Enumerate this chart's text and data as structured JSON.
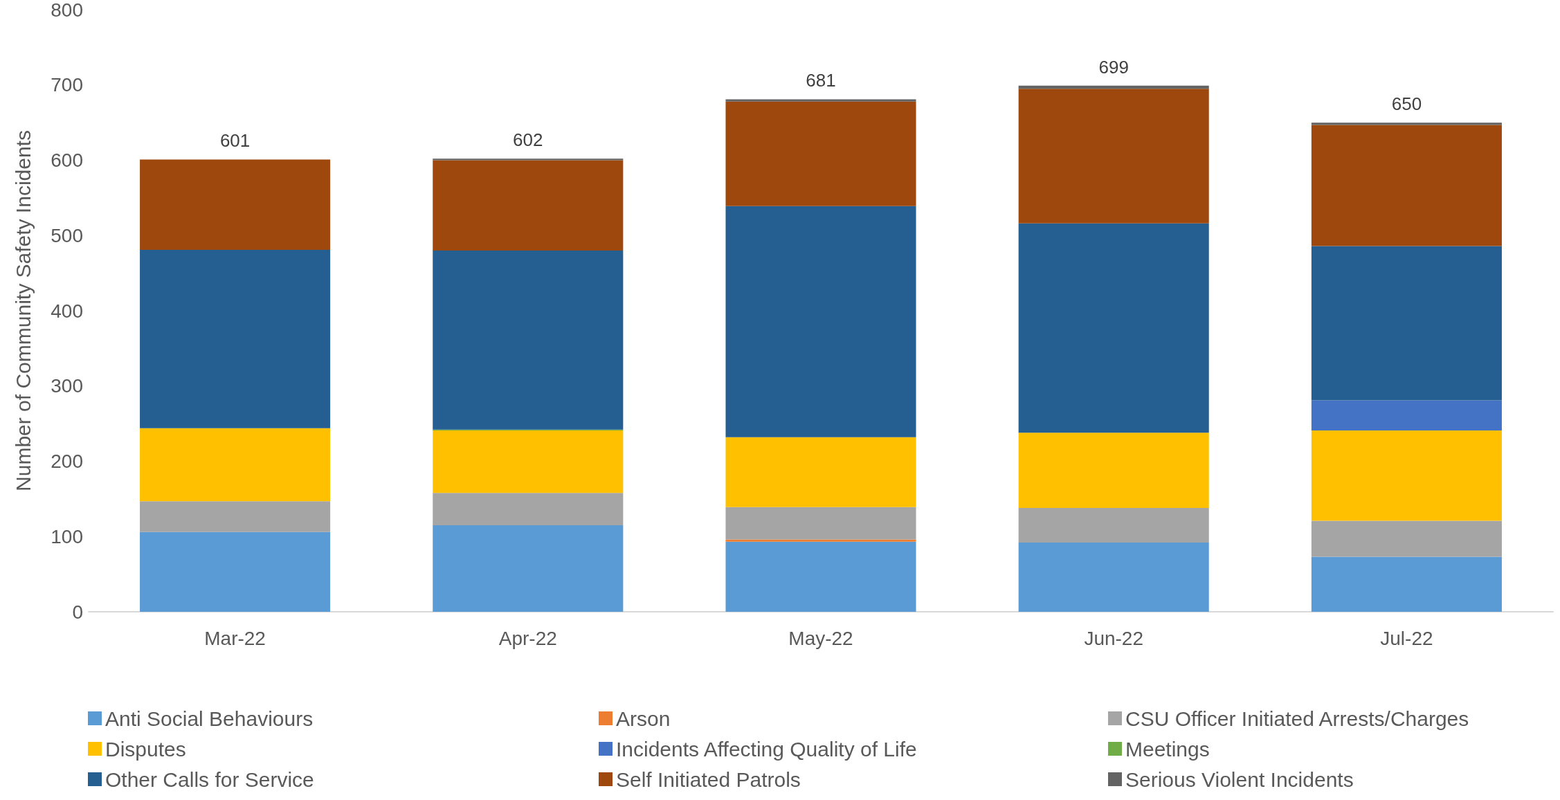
{
  "chart_data": {
    "type": "bar",
    "stacked": true,
    "ylabel": "Number of Community Safety Incidents",
    "categories": [
      "Mar-22",
      "Apr-22",
      "May-22",
      "Jun-22",
      "Jul-22"
    ],
    "ylim": [
      0,
      800
    ],
    "yticks": [
      0,
      100,
      200,
      300,
      400,
      500,
      600,
      700,
      800
    ],
    "grid": false,
    "legend": "bottom",
    "totals": [
      "601",
      "602",
      "681",
      "699",
      "650"
    ],
    "series": [
      {
        "name": "Anti Social Behaviours",
        "color": "#5b9bd5",
        "values": [
          106,
          115,
          93,
          92,
          73
        ]
      },
      {
        "name": "Arson",
        "color": "#ed7d31",
        "values": [
          0,
          0,
          3,
          0,
          0
        ]
      },
      {
        "name": "CSU Officer Initiated Arrests/Charges",
        "color": "#a5a5a5",
        "values": [
          41,
          43,
          43,
          46,
          48
        ]
      },
      {
        "name": "Disputes",
        "color": "#ffc000",
        "values": [
          97,
          83,
          93,
          100,
          120
        ]
      },
      {
        "name": "Incidents Affecting Quality of Life",
        "color": "#4472c4",
        "values": [
          0,
          0,
          0,
          0,
          40
        ]
      },
      {
        "name": "Meetings",
        "color": "#70ad47",
        "values": [
          0,
          1,
          0,
          0,
          0
        ]
      },
      {
        "name": "Other Calls for Service",
        "color": "#255e91",
        "values": [
          237,
          238,
          307,
          278,
          205
        ]
      },
      {
        "name": "Self Initiated Patrols",
        "color": "#9e480e",
        "values": [
          120,
          120,
          139,
          179,
          161
        ]
      },
      {
        "name": "Serious Violent Incidents",
        "color": "#636363",
        "values": [
          0,
          2,
          3,
          4,
          3
        ]
      }
    ]
  }
}
